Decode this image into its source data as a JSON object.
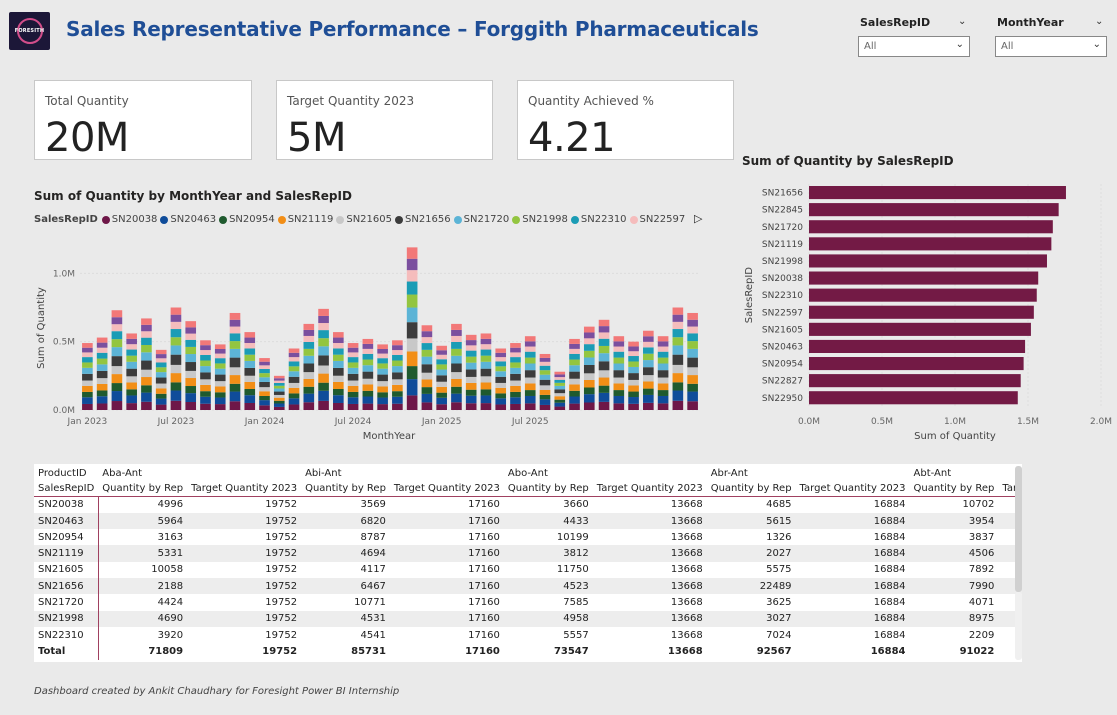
{
  "header": {
    "logo_text": "FORESITH",
    "title": "Sales Representative Performance – Forggith Pharmaceuticals"
  },
  "slicers": [
    {
      "label": "SalesRepID",
      "value": "All"
    },
    {
      "label": "MonthYear",
      "value": "All"
    }
  ],
  "cards": [
    {
      "label": "Total Quantity",
      "value": "20M"
    },
    {
      "label": "Target Quantity 2023",
      "value": "5M"
    },
    {
      "label": "Quantity Achieved %",
      "value": "4.21"
    }
  ],
  "colors": {
    "title": "#1f4e96",
    "bar": "#731a45",
    "table_accent": "#a04060"
  },
  "chart_data": [
    {
      "type": "bar",
      "stacked": true,
      "title": "Sum of Quantity by MonthYear and SalesRepID",
      "xlabel": "MonthYear",
      "ylabel": "Sum of Quantity",
      "x_ticks": [
        "Jan 2023",
        "Jul 2023",
        "Jan 2024",
        "Jul 2024",
        "Jan 2025",
        "Jul 2025"
      ],
      "y_ticks": [
        "0.0M",
        "0.5M",
        "1.0M"
      ],
      "ylim": [
        0,
        1.2
      ],
      "legend_title": "SalesRepID",
      "legend_placement": "top",
      "series": [
        {
          "name": "SN20038",
          "color": "#6e1748"
        },
        {
          "name": "SN20463",
          "color": "#0f4c9a"
        },
        {
          "name": "SN20954",
          "color": "#1f5a2e"
        },
        {
          "name": "SN21119",
          "color": "#f28e16"
        },
        {
          "name": "SN21605",
          "color": "#c8c8c8"
        },
        {
          "name": "SN21656",
          "color": "#3c3c3c"
        },
        {
          "name": "SN21720",
          "color": "#5cb4d6"
        },
        {
          "name": "SN21998",
          "color": "#93c540"
        },
        {
          "name": "SN22310",
          "color": "#1b9cb5"
        },
        {
          "name": "SN22597",
          "color": "#f5bcbc"
        },
        {
          "name": "SN22827",
          "color": "#7b4f9e"
        },
        {
          "name": "SN22845",
          "color": "#f27878"
        }
      ],
      "month_totals": [
        0.49,
        0.53,
        0.73,
        0.56,
        0.67,
        0.44,
        0.75,
        0.65,
        0.51,
        0.48,
        0.71,
        0.57,
        0.38,
        0.25,
        0.45,
        0.63,
        0.74,
        0.57,
        0.49,
        0.52,
        0.48,
        0.51,
        1.19,
        0.62,
        0.47,
        0.63,
        0.55,
        0.56,
        0.45,
        0.49,
        0.54,
        0.41,
        0.28,
        0.52,
        0.61,
        0.66,
        0.54,
        0.5,
        0.58,
        0.54,
        0.75,
        0.71
      ]
    },
    {
      "type": "bar",
      "orientation": "horizontal",
      "title": "Sum of Quantity by SalesRepID",
      "xlabel": "Sum of Quantity",
      "ylabel": "SalesRepID",
      "x_ticks": [
        "0.0M",
        "0.5M",
        "1.0M",
        "1.5M",
        "2.0M"
      ],
      "xlim": [
        0,
        2.0
      ],
      "categories": [
        "SN21656",
        "SN22845",
        "SN21720",
        "SN21119",
        "SN21998",
        "SN20038",
        "SN22310",
        "SN22597",
        "SN21605",
        "SN20463",
        "SN20954",
        "SN22827",
        "SN22950"
      ],
      "values": [
        1.76,
        1.71,
        1.67,
        1.66,
        1.63,
        1.57,
        1.56,
        1.54,
        1.52,
        1.48,
        1.47,
        1.45,
        1.43
      ]
    }
  ],
  "table": {
    "row_header_top": "ProductID",
    "row_header": "SalesRepID",
    "products": [
      "Aba-Ant",
      "Abi-Ant",
      "Abo-Ant",
      "Abr-Ant",
      "Abt-Ant"
    ],
    "sub_headers": [
      "Quantity by Rep",
      "Target Quantity 2023"
    ],
    "rows": [
      {
        "id": "SN20038",
        "cells": [
          "4996",
          "19752",
          "3569",
          "17160",
          "3660",
          "13668",
          "4685",
          "16884",
          "10702"
        ]
      },
      {
        "id": "SN20463",
        "cells": [
          "5964",
          "19752",
          "6820",
          "17160",
          "4433",
          "13668",
          "5615",
          "16884",
          "3954"
        ]
      },
      {
        "id": "SN20954",
        "cells": [
          "3163",
          "19752",
          "8787",
          "17160",
          "10199",
          "13668",
          "1326",
          "16884",
          "3837"
        ]
      },
      {
        "id": "SN21119",
        "cells": [
          "5331",
          "19752",
          "4694",
          "17160",
          "3812",
          "13668",
          "2027",
          "16884",
          "4506"
        ]
      },
      {
        "id": "SN21605",
        "cells": [
          "10058",
          "19752",
          "4117",
          "17160",
          "11750",
          "13668",
          "5575",
          "16884",
          "7892"
        ]
      },
      {
        "id": "SN21656",
        "cells": [
          "2188",
          "19752",
          "6467",
          "17160",
          "4523",
          "13668",
          "22489",
          "16884",
          "7990"
        ]
      },
      {
        "id": "SN21720",
        "cells": [
          "4424",
          "19752",
          "10771",
          "17160",
          "7585",
          "13668",
          "3625",
          "16884",
          "4071"
        ]
      },
      {
        "id": "SN21998",
        "cells": [
          "4690",
          "19752",
          "4531",
          "17160",
          "4958",
          "13668",
          "3027",
          "16884",
          "8975"
        ]
      },
      {
        "id": "SN22310",
        "cells": [
          "3920",
          "19752",
          "4541",
          "17160",
          "5557",
          "13668",
          "7024",
          "16884",
          "2209"
        ]
      }
    ],
    "total": {
      "label": "Total",
      "cells": [
        "71809",
        "19752",
        "85731",
        "17160",
        "73547",
        "13668",
        "92567",
        "16884",
        "91022"
      ]
    }
  },
  "footer": "Dashboard created by Ankit Chaudhary for Foresight Power BI Internship"
}
